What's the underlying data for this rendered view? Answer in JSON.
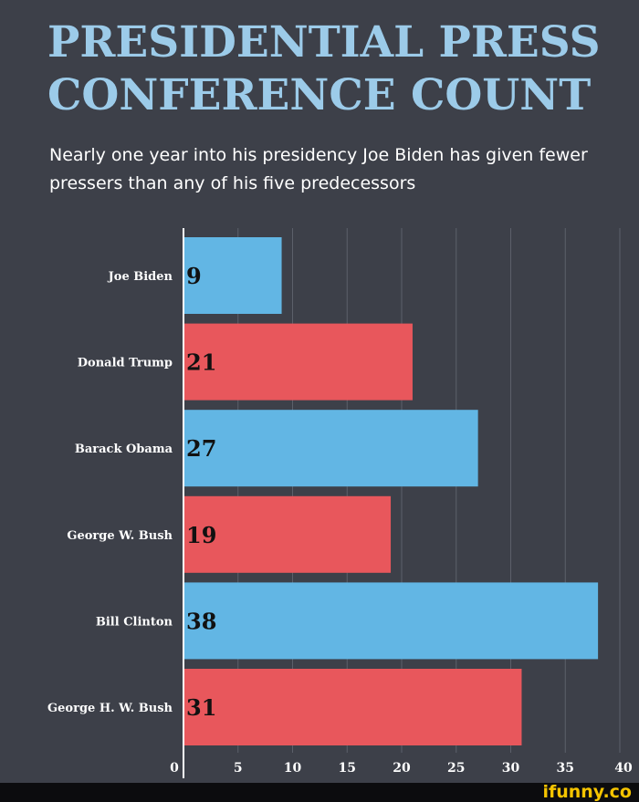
{
  "chart_data": {
    "type": "bar",
    "orientation": "horizontal",
    "title": "PRESIDENTIAL PRESS CONFERENCE COUNT",
    "subtitle": "Nearly one year into his presidency Joe Biden has given fewer pressers than any of his five predecessors",
    "categories": [
      "Joe Biden",
      "Donald Trump",
      "Barack Obama",
      "George W. Bush",
      "Bill Clinton",
      "George H. W. Bush"
    ],
    "values": [
      9,
      21,
      27,
      19,
      38,
      31
    ],
    "bar_colors": [
      "#62b6e4",
      "#e8575c",
      "#62b6e4",
      "#e8575c",
      "#62b6e4",
      "#e8575c"
    ],
    "data_labels": [
      "9",
      "21",
      "27",
      "19",
      "38",
      "31"
    ],
    "xlim": [
      0,
      40
    ],
    "x_ticks": [
      0,
      5,
      10,
      15,
      20,
      25,
      30,
      35,
      40
    ],
    "x_tick_labels": [
      "0",
      "5",
      "10",
      "15",
      "20",
      "25",
      "30",
      "35",
      "40"
    ],
    "grid": true,
    "legend": "none"
  },
  "watermark": "ifunny.co"
}
